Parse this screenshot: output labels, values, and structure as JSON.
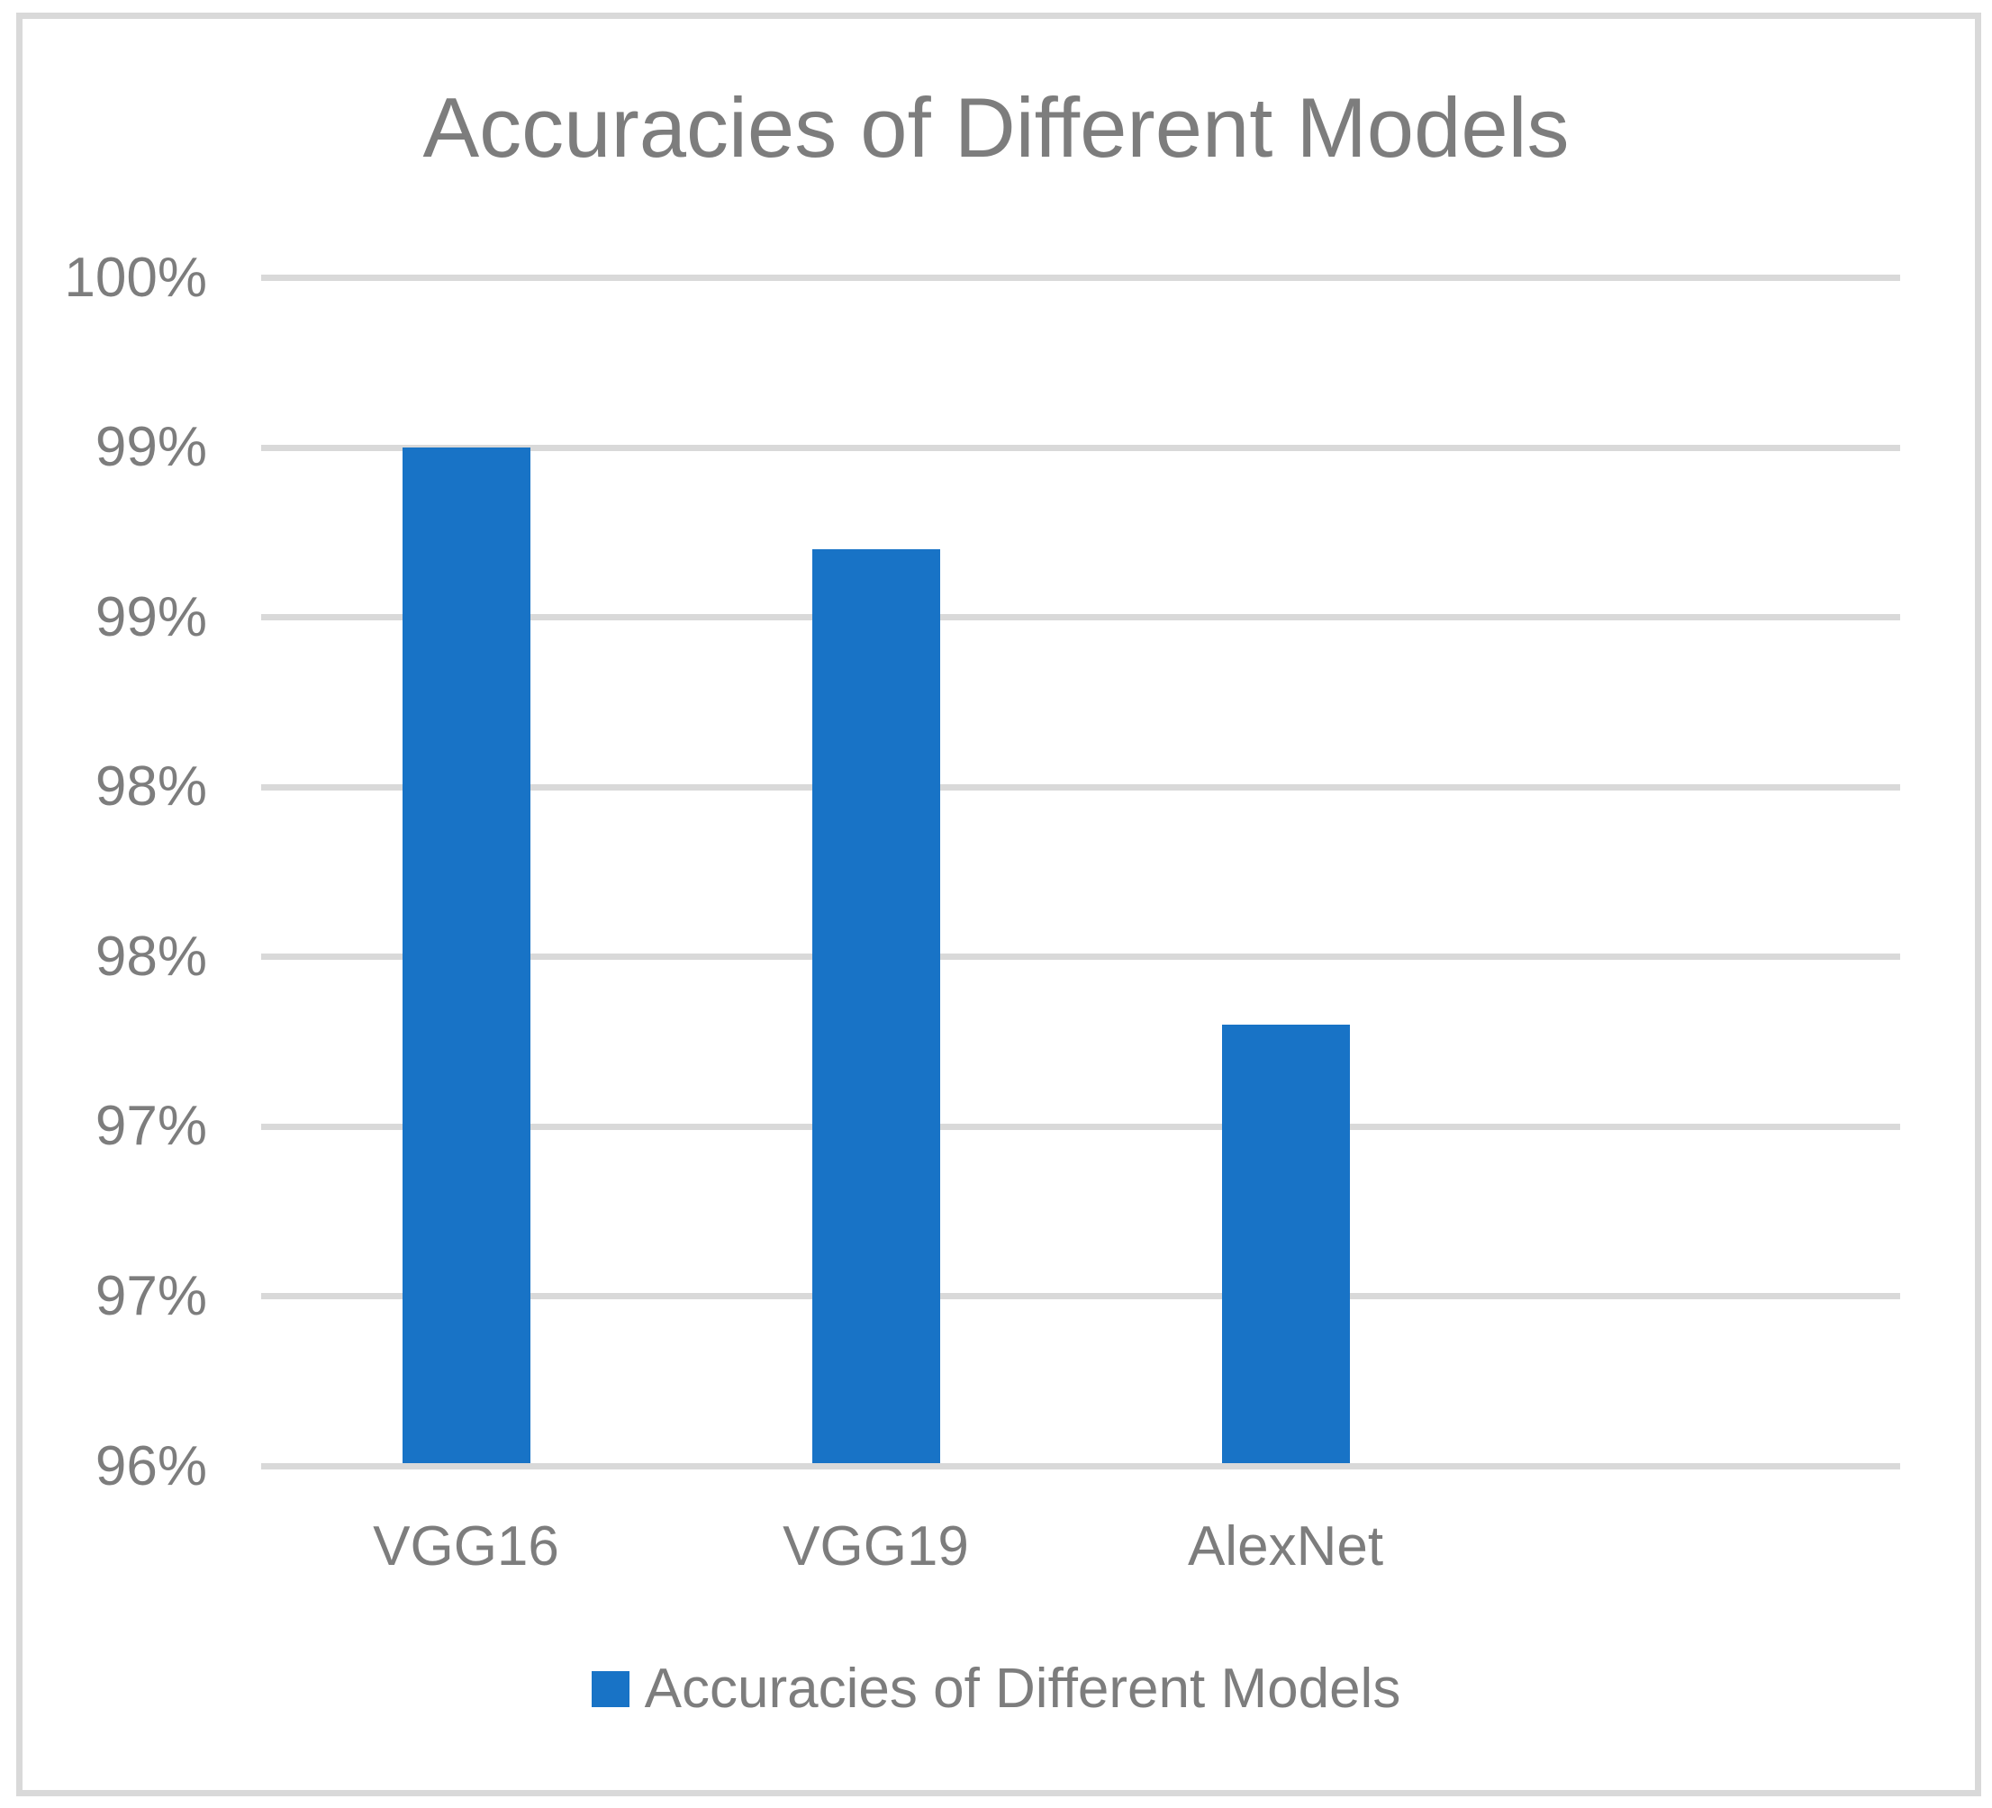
{
  "chart_data": {
    "type": "bar",
    "title": "Accuracies of Different Models",
    "categories": [
      "VGG16",
      "VGG19",
      "AlexNet"
    ],
    "series": [
      {
        "name": "Accuracies of Different Models",
        "values": [
          99.5,
          99.2,
          97.8
        ]
      }
    ],
    "values_unit": "%",
    "xlabel": "",
    "ylabel": "",
    "ylim": [
      96.5,
      100
    ],
    "ytick_step": 0.5,
    "ytick_labels_top_to_bottom": [
      "100%",
      "99%",
      "99%",
      "98%",
      "98%",
      "97%",
      "97%",
      "96%"
    ],
    "grid": true,
    "x_slots": 4,
    "legend": {
      "position": "bottom",
      "label": "Accuracies of Different Models"
    },
    "colors": {
      "bar": "#1873C6",
      "text": "#7D7D7D",
      "gridline": "#D9D9D9",
      "frame": "#D9D9D9",
      "background": "#FFFFFF"
    }
  }
}
